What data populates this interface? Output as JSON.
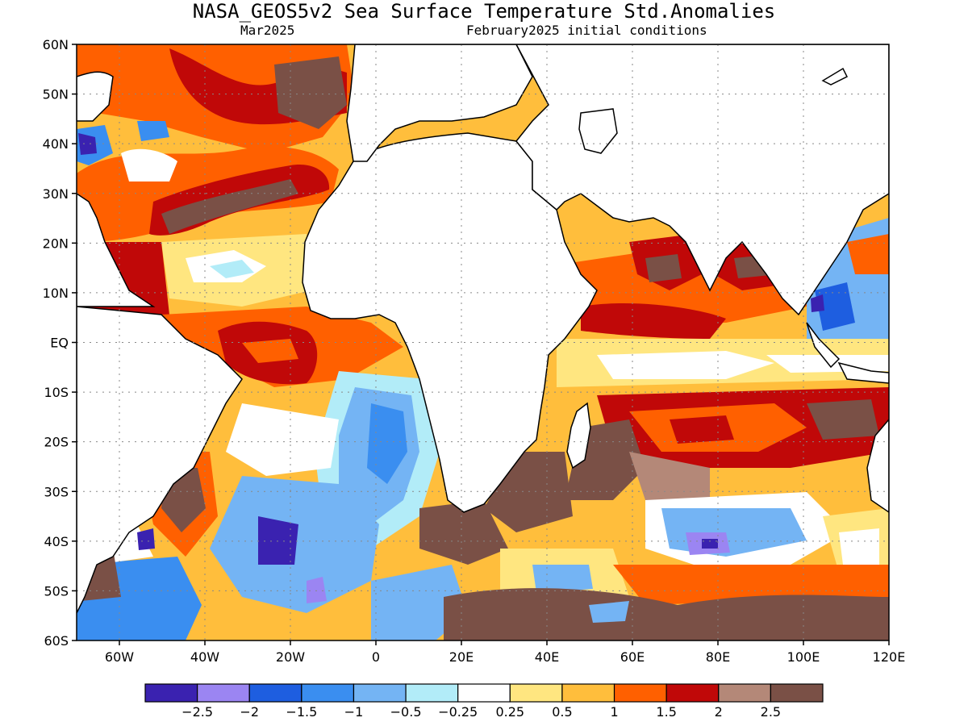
{
  "title": "NASA_GEOS5v2 Sea Surface Temperature Std.Anomalies",
  "subtitle_left": "Mar2025",
  "subtitle_right": "February2025 initial conditions",
  "map": {
    "lon_range": [
      -70,
      120
    ],
    "lat_range": [
      -60,
      60
    ],
    "gridlines": "dotted",
    "lat_ticks": [
      {
        "value": 60,
        "label": "60N"
      },
      {
        "value": 50,
        "label": "50N"
      },
      {
        "value": 40,
        "label": "40N"
      },
      {
        "value": 30,
        "label": "30N"
      },
      {
        "value": 20,
        "label": "20N"
      },
      {
        "value": 10,
        "label": "10N"
      },
      {
        "value": 0,
        "label": "EQ"
      },
      {
        "value": -10,
        "label": "10S"
      },
      {
        "value": -20,
        "label": "20S"
      },
      {
        "value": -30,
        "label": "30S"
      },
      {
        "value": -40,
        "label": "40S"
      },
      {
        "value": -50,
        "label": "50S"
      },
      {
        "value": -60,
        "label": "60S"
      }
    ],
    "lon_ticks": [
      {
        "value": -60,
        "label": "60W"
      },
      {
        "value": -40,
        "label": "40W"
      },
      {
        "value": -20,
        "label": "20W"
      },
      {
        "value": 0,
        "label": "0"
      },
      {
        "value": 20,
        "label": "20E"
      },
      {
        "value": 40,
        "label": "40E"
      },
      {
        "value": 60,
        "label": "60E"
      },
      {
        "value": 80,
        "label": "80E"
      },
      {
        "value": 100,
        "label": "100E"
      },
      {
        "value": 120,
        "label": "120E"
      }
    ],
    "colorbar": {
      "colors": [
        "#3a22b0",
        "#9b85f2",
        "#1e5ee0",
        "#3a8ef0",
        "#74b4f4",
        "#b2ecf8",
        "#ffffff",
        "#ffe680",
        "#ffbe3c",
        "#ff6000",
        "#c00808",
        "#b48878",
        "#7a5046"
      ],
      "labels": [
        "−2.5",
        "−2",
        "−1.5",
        "−1",
        "−0.5",
        "−0.25",
        "0.25",
        "0.5",
        "1",
        "1.5",
        "2",
        "2.5"
      ]
    }
  }
}
